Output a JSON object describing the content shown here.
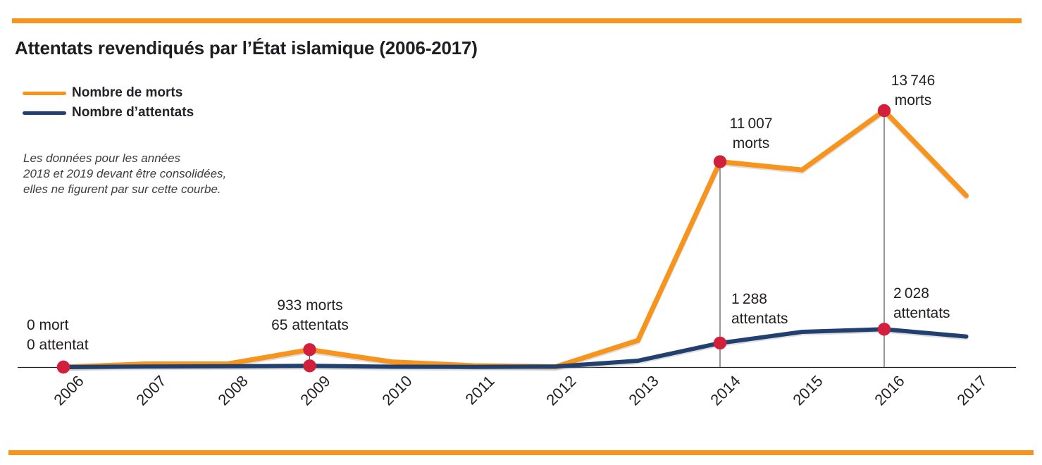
{
  "page": {
    "title": "Attentats revendiqués par l’État islamique (2006-2017)"
  },
  "colors": {
    "accent_orange": "#F6941E",
    "line_deaths": "#F6941E",
    "line_attacks": "#21406F",
    "marker_red": "#D2203C",
    "axis": "#1c1c1c",
    "connector": "#555555"
  },
  "legend": {
    "items": [
      {
        "key": "deaths",
        "label": "Nombre de morts",
        "color": "#F6941E"
      },
      {
        "key": "attacks",
        "label": "Nombre d’attentats",
        "color": "#21406F"
      }
    ]
  },
  "note": {
    "text": "Les données pour les années\n2018 et 2019 devant être consolidées,\nelles ne figurent par sur cette courbe."
  },
  "chart_data": {
    "type": "line",
    "title": "Attentats revendiqués par l’État islamique (2006-2017)",
    "x": [
      2006,
      2007,
      2008,
      2009,
      2010,
      2011,
      2012,
      2013,
      2014,
      2015,
      2016,
      2017
    ],
    "series": [
      {
        "key": "deaths",
        "name": "Nombre de morts",
        "color": "#F6941E",
        "values": [
          0,
          170,
          170,
          933,
          280,
          75,
          20,
          1430,
          11007,
          10570,
          13746,
          9190
        ]
      },
      {
        "key": "attacks",
        "name": "Nombre d’attentats",
        "color": "#21406F",
        "values": [
          0,
          30,
          40,
          65,
          20,
          10,
          25,
          340,
          1288,
          1890,
          2028,
          1640
        ]
      }
    ],
    "labeled_points": [
      {
        "year": 2006,
        "deaths": 0,
        "attacks": 0
      },
      {
        "year": 2009,
        "deaths": 933,
        "attacks": 65
      },
      {
        "year": 2014,
        "deaths": 11007,
        "attacks": 1288
      },
      {
        "year": 2016,
        "deaths": 13746,
        "attacks": 2028
      }
    ],
    "markers": [
      {
        "year": 2006,
        "series": [
          "deaths",
          "attacks"
        ]
      },
      {
        "year": 2009,
        "series": [
          "deaths",
          "attacks"
        ]
      },
      {
        "year": 2014,
        "series": [
          "deaths",
          "attacks"
        ]
      },
      {
        "year": 2016,
        "series": [
          "deaths",
          "attacks"
        ]
      }
    ],
    "connectors": [
      {
        "year": 2009,
        "to": "attacks"
      },
      {
        "year": 2014,
        "to": "axis"
      },
      {
        "year": 2016,
        "to": "axis"
      }
    ],
    "xlabel": "",
    "ylabel": "",
    "ylim": [
      0,
      14000
    ],
    "grid": false,
    "legend_position": "top-left"
  },
  "annotations": {
    "y2006": [
      "0 mort",
      "0 attentat"
    ],
    "y2009": [
      "933 morts",
      "65 attentats"
    ],
    "y2014_morts": [
      "11 007",
      "morts"
    ],
    "y2014_attentats": [
      "1 288",
      "attentats"
    ],
    "y2016_morts": [
      "13 746",
      "morts"
    ],
    "y2016_attentats": [
      "2 028",
      "attentats"
    ]
  },
  "x_axis": {
    "labels": [
      "2006",
      "2007",
      "2008",
      "2009",
      "2010",
      "2011",
      "2012",
      "2013",
      "2014",
      "2015",
      "2016",
      "2017"
    ]
  }
}
